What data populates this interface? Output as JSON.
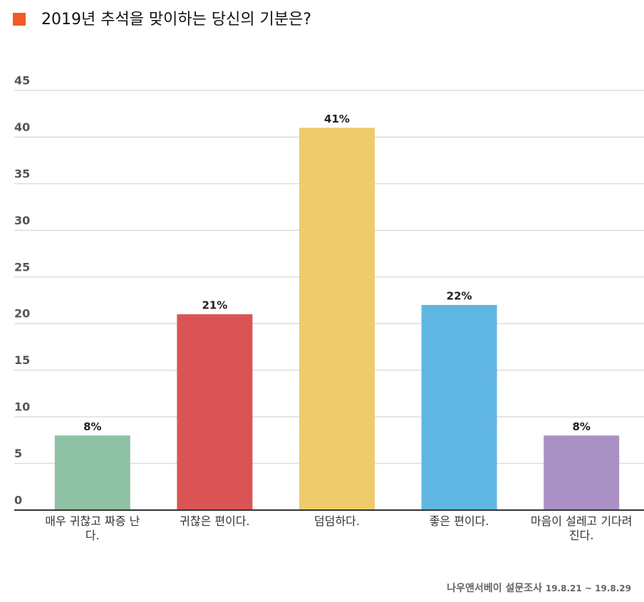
{
  "chart_data": {
    "type": "bar",
    "title": "2019년 추석을 맞이하는 당신의 기분은?",
    "categories": [
      "매우 귀찮고 짜증 난다.",
      "귀찮은 편이다.",
      "덤덤하다.",
      "좋은 편이다.",
      "마음이 설레고 기다려진다."
    ],
    "values": [
      8,
      21,
      41,
      22,
      8
    ],
    "value_labels": [
      "8%",
      "21%",
      "41%",
      "22%",
      "8%"
    ],
    "colors": [
      "#8fc1a5",
      "#db5455",
      "#eecb6b",
      "#60b6e3",
      "#a991c6"
    ],
    "ylim": [
      0,
      45
    ],
    "yticks": [
      0,
      5,
      10,
      15,
      20,
      25,
      30,
      35,
      40,
      45
    ],
    "grid": true,
    "source": "나우앤서베이 설문조사",
    "period": "19.8.21 ~ 19.8.29"
  }
}
